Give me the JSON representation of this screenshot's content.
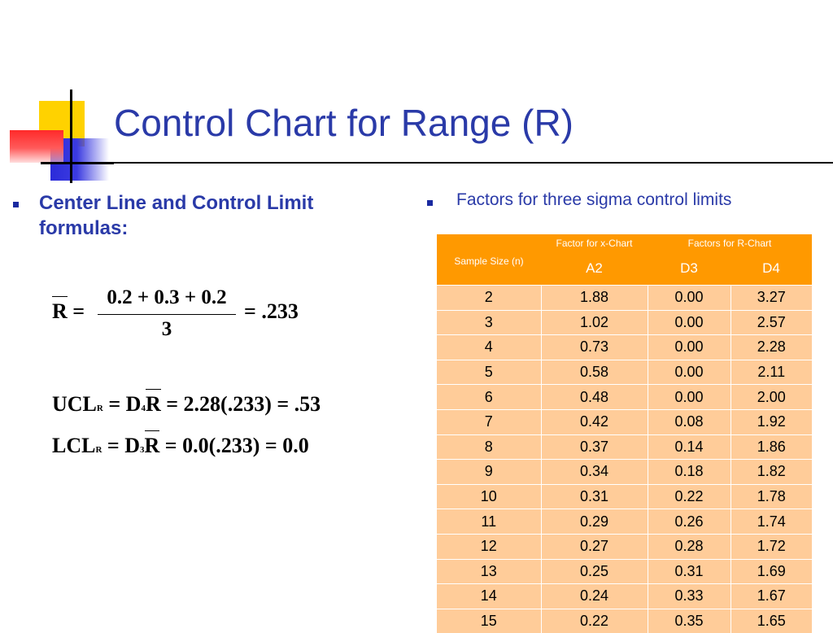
{
  "slide": {
    "title": "Control Chart for Range (R)",
    "left_bullet": "Center Line and Control Limit formulas:",
    "right_bullet": "Factors for three sigma control limits"
  },
  "formulas": {
    "rbar": {
      "lhs": "R",
      "numerator": "0.2 + 0.3 + 0.2",
      "denominator": "3",
      "result": "= .233"
    },
    "ucl": {
      "label": "UCL",
      "sub": "R",
      "eq1": " = D",
      "d_sub": "4",
      "rbar": "R",
      "rest": " = 2.28(.233) = .53"
    },
    "lcl": {
      "label": "LCL",
      "sub": "R",
      "eq1": " = D",
      "d_sub": "3",
      "rbar": "R",
      "rest": " = 0.0(.233) = 0.0"
    }
  },
  "table": {
    "header": {
      "sample_size": "Sample Size (n)",
      "x_chart": "Factor for x-Chart",
      "r_chart": "Factors for R-Chart",
      "a2": "A2",
      "d3": "D3",
      "d4": "D4"
    },
    "rows": [
      [
        "2",
        "1.88",
        "0.00",
        "3.27"
      ],
      [
        "3",
        "1.02",
        "0.00",
        "2.57"
      ],
      [
        "4",
        "0.73",
        "0.00",
        "2.28"
      ],
      [
        "5",
        "0.58",
        "0.00",
        "2.11"
      ],
      [
        "6",
        "0.48",
        "0.00",
        "2.00"
      ],
      [
        "7",
        "0.42",
        "0.08",
        "1.92"
      ],
      [
        "8",
        "0.37",
        "0.14",
        "1.86"
      ],
      [
        "9",
        "0.34",
        "0.18",
        "1.82"
      ],
      [
        "10",
        "0.31",
        "0.22",
        "1.78"
      ],
      [
        "11",
        "0.29",
        "0.26",
        "1.74"
      ],
      [
        "12",
        "0.27",
        "0.28",
        "1.72"
      ],
      [
        "13",
        "0.25",
        "0.31",
        "1.69"
      ],
      [
        "14",
        "0.24",
        "0.33",
        "1.67"
      ],
      [
        "15",
        "0.22",
        "0.35",
        "1.65"
      ]
    ]
  },
  "colors": {
    "title": "#2a3aa8",
    "table_header": "#ff9900",
    "table_body": "#ffcc99"
  }
}
